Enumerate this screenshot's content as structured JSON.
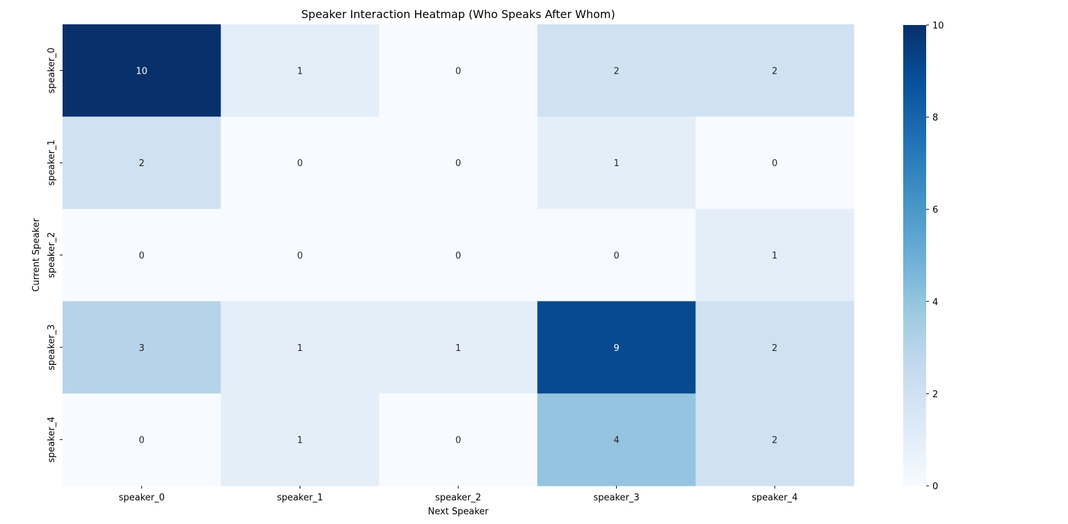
{
  "chart_data": {
    "type": "heatmap",
    "title": "Speaker Interaction Heatmap (Who Speaks After Whom)",
    "xlabel": "Next Speaker",
    "ylabel": "Current Speaker",
    "x_categories": [
      "speaker_0",
      "speaker_1",
      "speaker_2",
      "speaker_3",
      "speaker_4"
    ],
    "y_categories": [
      "speaker_0",
      "speaker_1",
      "speaker_2",
      "speaker_3",
      "speaker_4"
    ],
    "values": [
      [
        10,
        1,
        0,
        2,
        2
      ],
      [
        2,
        0,
        0,
        1,
        0
      ],
      [
        0,
        0,
        0,
        0,
        1
      ],
      [
        3,
        1,
        1,
        9,
        2
      ],
      [
        0,
        1,
        0,
        4,
        2
      ]
    ],
    "color_range": [
      0,
      10
    ],
    "colorbar_ticks": [
      0,
      2,
      4,
      6,
      8,
      10
    ],
    "colormap": "Blues",
    "annotated": true
  }
}
